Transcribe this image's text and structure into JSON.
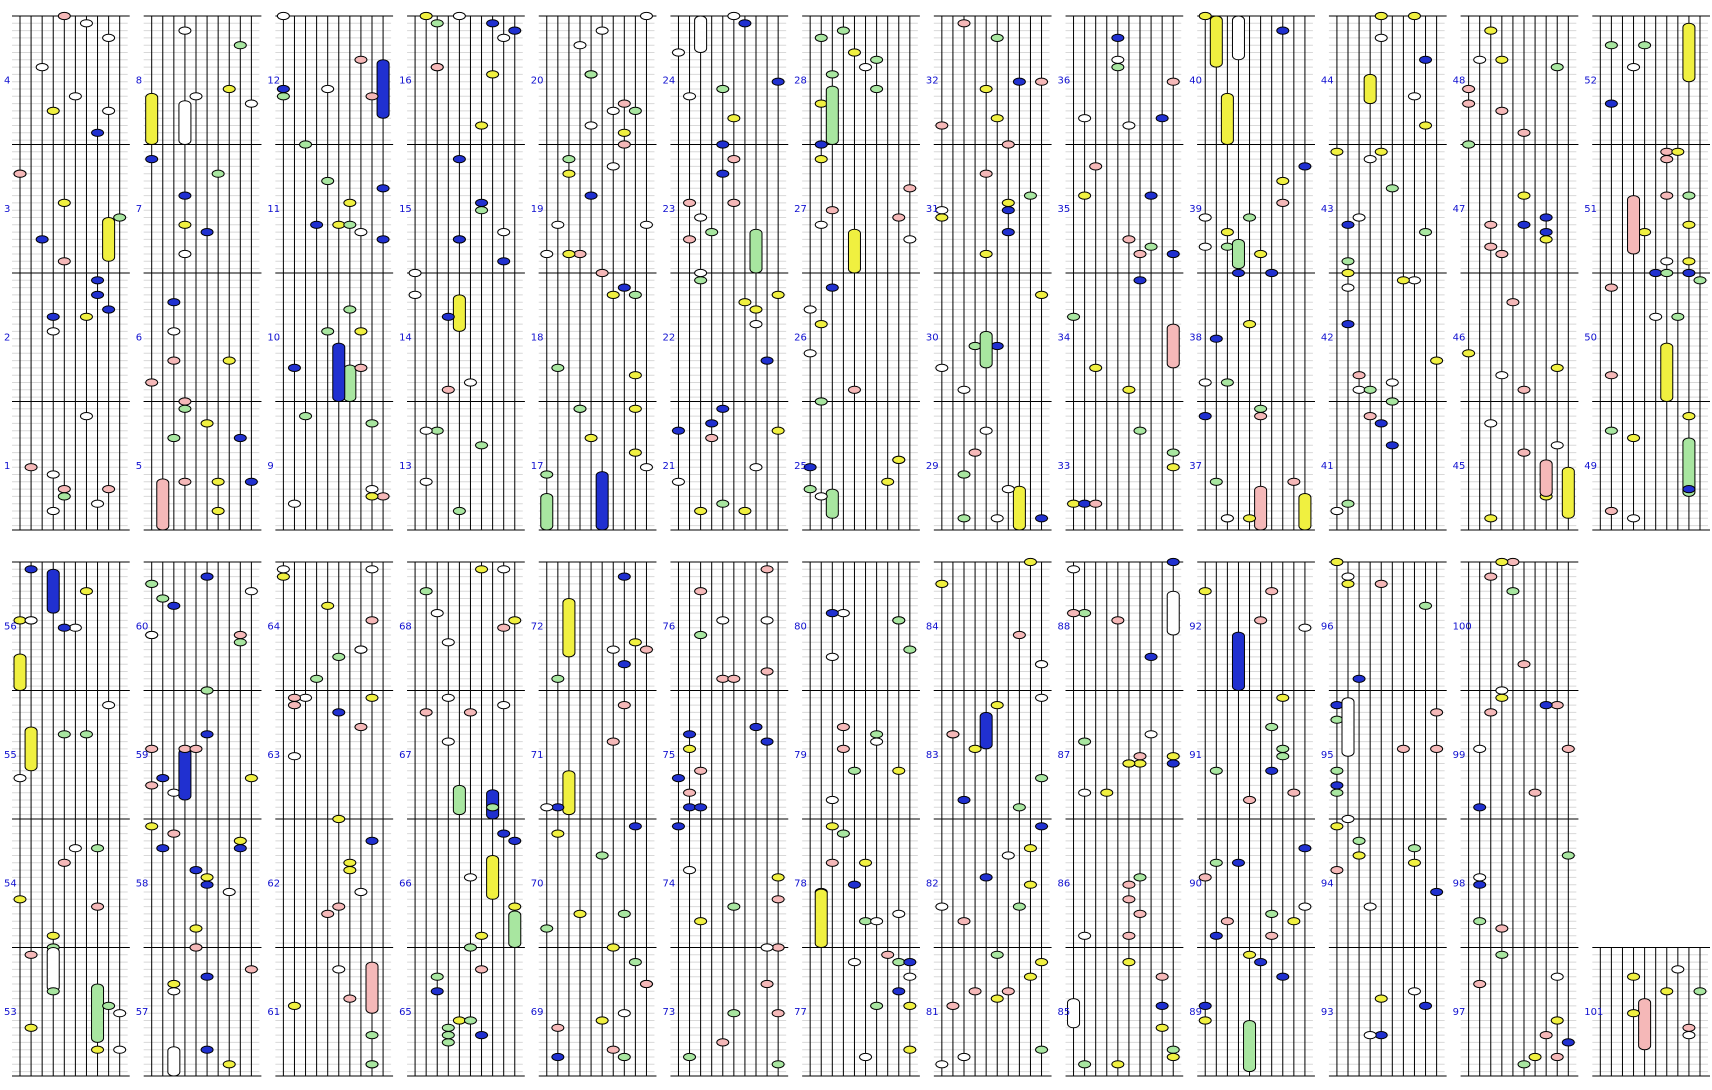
{
  "measures": [
    1,
    2,
    3,
    4,
    5,
    6,
    7,
    8,
    9,
    10,
    11,
    12,
    13,
    14,
    15,
    16,
    17,
    18,
    19,
    20,
    21,
    22,
    23,
    24,
    25,
    26,
    27,
    28,
    29,
    30,
    31,
    32,
    33,
    34,
    35,
    36,
    37,
    38,
    39,
    40,
    41,
    42,
    43,
    44,
    45,
    46,
    47,
    48,
    49,
    50,
    51,
    52,
    53,
    54,
    55,
    56,
    57,
    58,
    59,
    60,
    61,
    62,
    63,
    64,
    65,
    66,
    67,
    68,
    69,
    70,
    71,
    72,
    73,
    74,
    75,
    76,
    77,
    78,
    79,
    80,
    81,
    82,
    83,
    84,
    85,
    86,
    87,
    88,
    89,
    90,
    91,
    92,
    93,
    94,
    95,
    96,
    97,
    98,
    99,
    100,
    101
  ]
}
